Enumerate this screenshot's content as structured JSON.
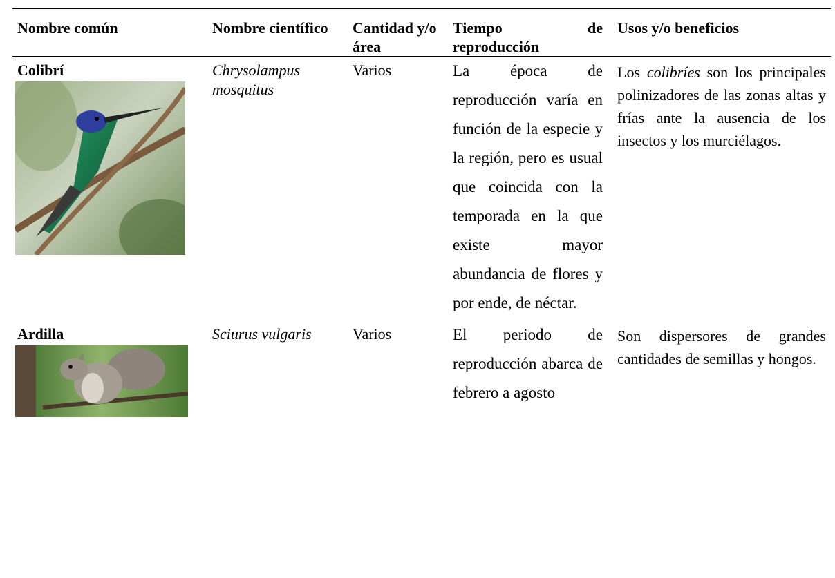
{
  "header": {
    "columns": [
      "Nombre común",
      "Nombre científico",
      "Cantidad y/o área",
      "Tiempo de reproducción",
      "Usos y/o beneficios"
    ]
  },
  "table": {
    "rows": [
      {
        "common_name": "Colibrí",
        "scientific_name": "Chrysolampus mosquitus",
        "quantity": "Varios",
        "reproduction": "La época de reproducción varía en función de la especie y la región, pero es usual que coincida con la temporada en la que existe mayor abundancia de flores y por ende, de néctar.",
        "uses": {
          "before": "Los",
          "italic": "colibríes",
          "after": "son los principales polinizadores de las zonas altas y frías ante la ausencia de los insectos y los murciélagos."
        }
      },
      {
        "common_name": "Ardilla",
        "scientific_name": "Sciurus vulgaris",
        "quantity": "Varios",
        "reproduction": "El periodo de reproducción abarca de febrero a agosto",
        "uses": "Son dispersores de grandes cantidades de semillas y hongos."
      }
    ]
  }
}
